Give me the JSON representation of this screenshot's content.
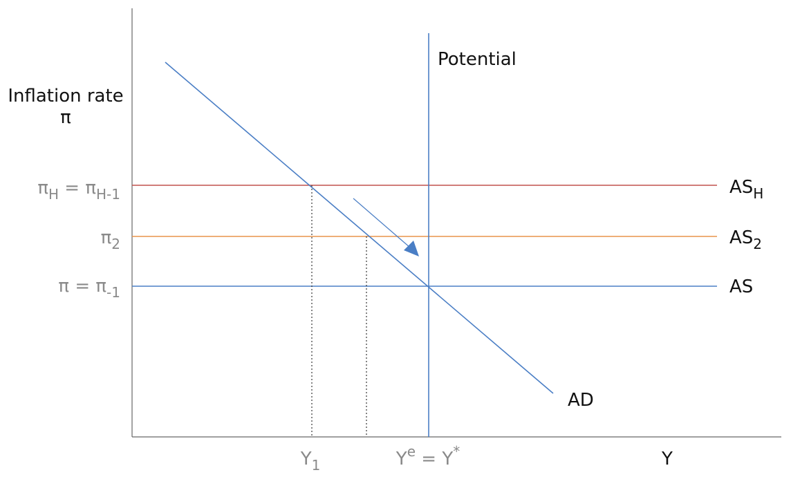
{
  "y_axis": {
    "title_line1": "Inflation rate",
    "title_line2": "π"
  },
  "x_axis": {
    "title": "Y"
  },
  "ticks_y": {
    "high": {
      "main": "π",
      "sub1": "H",
      "eq": " = π",
      "sub2": "H-1"
    },
    "mid": {
      "main": "π",
      "sub": "2"
    },
    "base": {
      "main": "π = π",
      "sub": "-1"
    }
  },
  "ticks_x": {
    "y1": {
      "main": "Y",
      "sub": "1"
    },
    "ye": {
      "main": "Y",
      "sup1": "e",
      "eq": " = Y",
      "sup2": "*"
    }
  },
  "curves": {
    "potential": {
      "label": "Potential",
      "color": "#4a7ec5"
    },
    "ad": {
      "label": "AD",
      "color": "#4a7ec5"
    },
    "as_h": {
      "main": "AS",
      "sub": "H",
      "color": "#c0504d"
    },
    "as_2": {
      "main": "AS",
      "sub": "2",
      "color": "#e8944a"
    },
    "as": {
      "label": "AS",
      "color": "#4a7ec5"
    }
  },
  "colors": {
    "axis": "#666666",
    "arrow": "#4a7ec5",
    "guides": "#333333"
  }
}
